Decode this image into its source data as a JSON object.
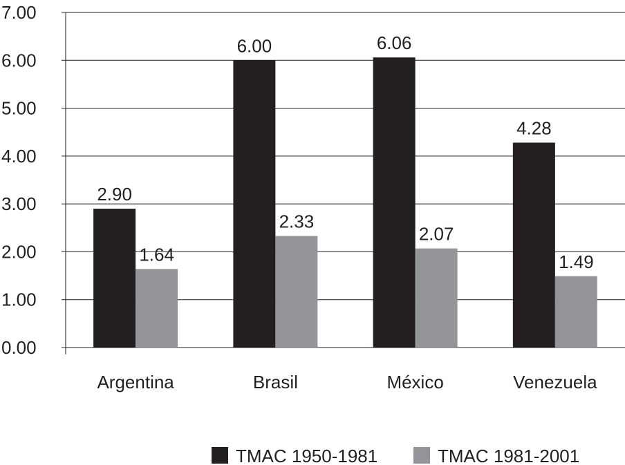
{
  "chart_data": {
    "type": "bar",
    "categories": [
      "Argentina",
      "Brasil",
      "México",
      "Venezuela"
    ],
    "series": [
      {
        "name": "TMAC 1950-1981",
        "values": [
          2.9,
          6.0,
          6.06,
          4.28
        ],
        "color": "#231f20"
      },
      {
        "name": "TMAC 1981-2001",
        "values": [
          1.64,
          2.33,
          2.07,
          1.49
        ],
        "color": "#939598"
      }
    ],
    "y_ticks": [
      "0.00",
      "1.00",
      "2.00",
      "3.00",
      "4.00",
      "5.00",
      "6.00",
      "7.00"
    ],
    "ylim": [
      0,
      7
    ],
    "grid": true,
    "legend_position": "bottom-right",
    "title": "",
    "xlabel": "",
    "ylabel": ""
  }
}
